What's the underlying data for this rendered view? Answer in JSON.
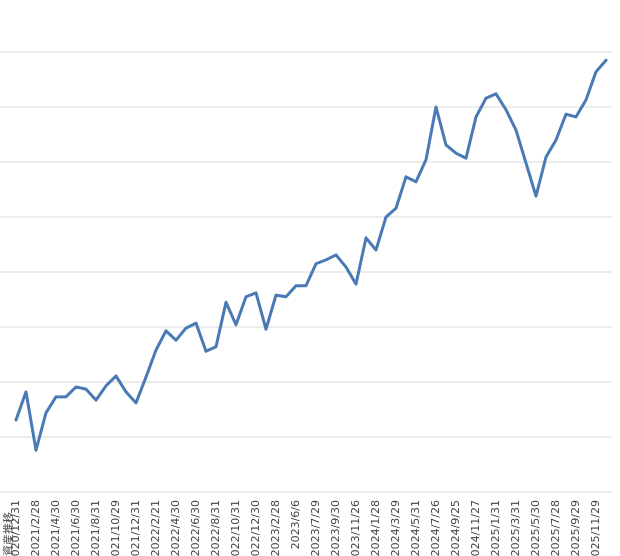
{
  "chart_data": {
    "type": "line",
    "y_label": "資産推移",
    "categories": [
      "2020/12/31",
      null,
      "2021/2/28",
      null,
      "2021/4/30",
      null,
      "2021/6/30",
      null,
      "2021/8/31",
      null,
      "2021/10/29",
      null,
      "2021/12/31",
      null,
      "2022/2/21",
      null,
      "2022/4/30",
      null,
      "2022/6/30",
      null,
      "2022/8/31",
      null,
      "2022/10/31",
      null,
      "2022/12/30",
      null,
      "2023/2/28",
      null,
      "2023/6/6",
      null,
      "2023/7/29",
      null,
      "2023/9/30",
      null,
      "2023/11/26",
      null,
      "2024/1/28",
      null,
      "2024/3/29",
      null,
      "2024/5/31",
      null,
      "2024/7/26",
      null,
      "2024/9/25",
      null,
      "2024/11/27",
      null,
      "2025/1/31",
      null,
      "2025/3/31",
      null,
      "2025/5/30",
      null,
      "2025/7/28",
      null,
      "2025/9/29",
      null,
      "2025/11/29",
      null
    ],
    "series": [
      {
        "color": "#4a7ab5",
        "values": [
          1.31,
          1.82,
          0.76,
          1.44,
          1.73,
          1.73,
          1.91,
          1.87,
          1.67,
          1.93,
          2.11,
          1.82,
          1.62,
          2.09,
          2.58,
          2.93,
          2.76,
          2.98,
          3.07,
          2.56,
          2.64,
          3.45,
          3.04,
          3.55,
          3.62,
          2.96,
          3.58,
          3.55,
          3.75,
          3.75,
          4.15,
          4.22,
          4.31,
          4.09,
          3.78,
          4.62,
          4.4,
          5.0,
          5.16,
          5.73,
          5.64,
          6.04,
          7.0,
          6.31,
          6.16,
          6.07,
          6.82,
          7.16,
          7.24,
          6.95,
          6.58,
          5.98,
          5.38,
          6.09,
          6.4,
          6.87,
          6.82,
          7.13,
          7.64,
          7.85
        ]
      }
    ],
    "ylim": [
      0,
      8
    ],
    "gridlines": [
      0,
      1,
      2,
      3,
      4,
      5,
      6,
      7,
      8
    ],
    "grid": true
  }
}
